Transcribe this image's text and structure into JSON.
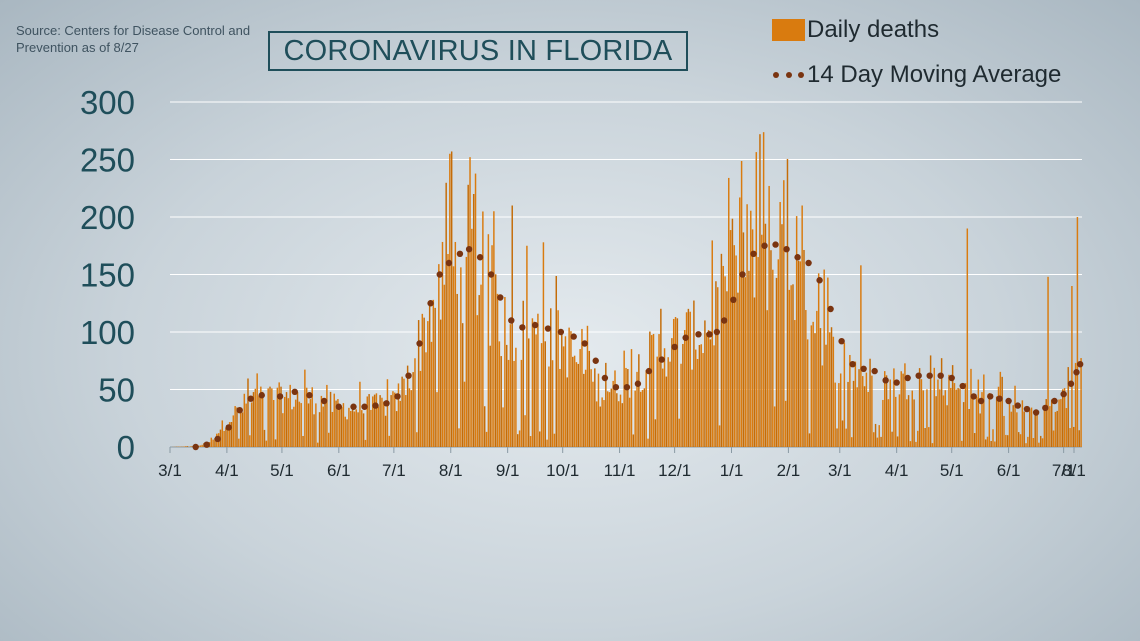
{
  "source": "Source: Centers for Disease Control and Prevention as of 8/27",
  "title": "CORONAVIRUS IN FLORIDA",
  "legend": {
    "bar_label": "Daily deaths",
    "line_label": "14 Day Moving Average"
  },
  "colors": {
    "bar": "#d97b0f",
    "bar_dark": "#c46c08",
    "avg_dot": "#7a3410",
    "title_text": "#1f4e5a",
    "axis_text": "#1f4e5a",
    "grid": "#ffffff"
  },
  "chart_data": {
    "type": "bar",
    "title": "CORONAVIRUS IN FLORIDA",
    "xlabel": "",
    "ylabel": "",
    "ylim": [
      0,
      300
    ],
    "yticks": [
      "0",
      "50",
      "100",
      "150",
      "200",
      "250",
      "300"
    ],
    "xticks": [
      "3/1",
      "4/1",
      "5/1",
      "6/1",
      "7/1",
      "8/1",
      "9/1",
      "10/1",
      "11/1",
      "12/1",
      "1/1",
      "2/1",
      "3/1",
      "4/1",
      "5/1",
      "6/1",
      "7/1",
      "8/1"
    ],
    "grid": true,
    "legend_position": "top-right",
    "series": [
      {
        "name": "Daily deaths",
        "type": "bar",
        "anchors": [
          {
            "day": 0,
            "value": 0
          },
          {
            "day": 14,
            "value": 1
          },
          {
            "day": 20,
            "value": 3
          },
          {
            "day": 31,
            "value": 25
          },
          {
            "day": 45,
            "value": 45
          },
          {
            "day": 61,
            "value": 45
          },
          {
            "day": 75,
            "value": 45
          },
          {
            "day": 92,
            "value": 36
          },
          {
            "day": 106,
            "value": 36
          },
          {
            "day": 122,
            "value": 40
          },
          {
            "day": 130,
            "value": 65
          },
          {
            "day": 140,
            "value": 120
          },
          {
            "day": 153,
            "value": 165
          },
          {
            "day": 165,
            "value": 165
          },
          {
            "day": 175,
            "value": 125
          },
          {
            "day": 184,
            "value": 108
          },
          {
            "day": 200,
            "value": 104
          },
          {
            "day": 214,
            "value": 95
          },
          {
            "day": 225,
            "value": 70
          },
          {
            "day": 235,
            "value": 52
          },
          {
            "day": 246,
            "value": 57
          },
          {
            "day": 260,
            "value": 80
          },
          {
            "day": 275,
            "value": 98
          },
          {
            "day": 290,
            "value": 104
          },
          {
            "day": 300,
            "value": 135
          },
          {
            "day": 312,
            "value": 172
          },
          {
            "day": 322,
            "value": 175
          },
          {
            "day": 336,
            "value": 165
          },
          {
            "day": 350,
            "value": 125
          },
          {
            "day": 360,
            "value": 88
          },
          {
            "day": 376,
            "value": 66
          },
          {
            "day": 391,
            "value": 58
          },
          {
            "day": 406,
            "value": 64
          },
          {
            "day": 421,
            "value": 55
          },
          {
            "day": 436,
            "value": 44
          },
          {
            "day": 451,
            "value": 42
          },
          {
            "day": 466,
            "value": 30
          },
          {
            "day": 481,
            "value": 38
          },
          {
            "day": 490,
            "value": 50
          },
          {
            "day": 496,
            "value": 72
          }
        ],
        "spikes": [
          {
            "day": 152,
            "value": 255
          },
          {
            "day": 153,
            "value": 257
          },
          {
            "day": 162,
            "value": 228
          },
          {
            "day": 165,
            "value": 220
          },
          {
            "day": 176,
            "value": 205
          },
          {
            "day": 186,
            "value": 210
          },
          {
            "day": 194,
            "value": 175
          },
          {
            "day": 203,
            "value": 178
          },
          {
            "day": 310,
            "value": 217
          },
          {
            "day": 321,
            "value": 272
          },
          {
            "day": 326,
            "value": 227
          },
          {
            "day": 334,
            "value": 232
          },
          {
            "day": 344,
            "value": 210
          },
          {
            "day": 376,
            "value": 158
          },
          {
            "day": 434,
            "value": 190
          },
          {
            "day": 478,
            "value": 148
          },
          {
            "day": 491,
            "value": 140
          },
          {
            "day": 494,
            "value": 200
          }
        ]
      },
      {
        "name": "14 Day Moving Average",
        "type": "dotted-line",
        "points": [
          {
            "day": 14,
            "value": 0
          },
          {
            "day": 20,
            "value": 2
          },
          {
            "day": 26,
            "value": 7
          },
          {
            "day": 32,
            "value": 17
          },
          {
            "day": 38,
            "value": 32
          },
          {
            "day": 44,
            "value": 42
          },
          {
            "day": 50,
            "value": 45
          },
          {
            "day": 60,
            "value": 44
          },
          {
            "day": 68,
            "value": 48
          },
          {
            "day": 76,
            "value": 45
          },
          {
            "day": 84,
            "value": 40
          },
          {
            "day": 92,
            "value": 35
          },
          {
            "day": 100,
            "value": 35
          },
          {
            "day": 106,
            "value": 35
          },
          {
            "day": 112,
            "value": 36
          },
          {
            "day": 118,
            "value": 38
          },
          {
            "day": 124,
            "value": 44
          },
          {
            "day": 130,
            "value": 62
          },
          {
            "day": 136,
            "value": 90
          },
          {
            "day": 142,
            "value": 125
          },
          {
            "day": 147,
            "value": 150
          },
          {
            "day": 152,
            "value": 160
          },
          {
            "day": 158,
            "value": 168
          },
          {
            "day": 163,
            "value": 172
          },
          {
            "day": 169,
            "value": 165
          },
          {
            "day": 175,
            "value": 150
          },
          {
            "day": 180,
            "value": 130
          },
          {
            "day": 186,
            "value": 110
          },
          {
            "day": 192,
            "value": 104
          },
          {
            "day": 199,
            "value": 106
          },
          {
            "day": 206,
            "value": 103
          },
          {
            "day": 213,
            "value": 100
          },
          {
            "day": 220,
            "value": 96
          },
          {
            "day": 226,
            "value": 90
          },
          {
            "day": 232,
            "value": 75
          },
          {
            "day": 237,
            "value": 60
          },
          {
            "day": 243,
            "value": 52
          },
          {
            "day": 249,
            "value": 52
          },
          {
            "day": 255,
            "value": 55
          },
          {
            "day": 261,
            "value": 66
          },
          {
            "day": 268,
            "value": 76
          },
          {
            "day": 275,
            "value": 87
          },
          {
            "day": 281,
            "value": 95
          },
          {
            "day": 288,
            "value": 98
          },
          {
            "day": 294,
            "value": 98
          },
          {
            "day": 298,
            "value": 100
          },
          {
            "day": 302,
            "value": 110
          },
          {
            "day": 307,
            "value": 128
          },
          {
            "day": 312,
            "value": 150
          },
          {
            "day": 318,
            "value": 168
          },
          {
            "day": 324,
            "value": 175
          },
          {
            "day": 330,
            "value": 176
          },
          {
            "day": 336,
            "value": 172
          },
          {
            "day": 342,
            "value": 165
          },
          {
            "day": 348,
            "value": 160
          },
          {
            "day": 354,
            "value": 145
          },
          {
            "day": 360,
            "value": 120
          },
          {
            "day": 366,
            "value": 92
          },
          {
            "day": 372,
            "value": 72
          },
          {
            "day": 378,
            "value": 68
          },
          {
            "day": 384,
            "value": 66
          },
          {
            "day": 390,
            "value": 58
          },
          {
            "day": 396,
            "value": 56
          },
          {
            "day": 402,
            "value": 60
          },
          {
            "day": 408,
            "value": 62
          },
          {
            "day": 414,
            "value": 62
          },
          {
            "day": 420,
            "value": 62
          },
          {
            "day": 426,
            "value": 60
          },
          {
            "day": 432,
            "value": 53
          },
          {
            "day": 438,
            "value": 44
          },
          {
            "day": 442,
            "value": 40
          },
          {
            "day": 447,
            "value": 44
          },
          {
            "day": 452,
            "value": 42
          },
          {
            "day": 457,
            "value": 40
          },
          {
            "day": 462,
            "value": 36
          },
          {
            "day": 467,
            "value": 33
          },
          {
            "day": 472,
            "value": 30
          },
          {
            "day": 477,
            "value": 34
          },
          {
            "day": 482,
            "value": 40
          },
          {
            "day": 487,
            "value": 46
          },
          {
            "day": 491,
            "value": 55
          },
          {
            "day": 494,
            "value": 65
          },
          {
            "day": 496,
            "value": 72
          }
        ]
      }
    ]
  }
}
